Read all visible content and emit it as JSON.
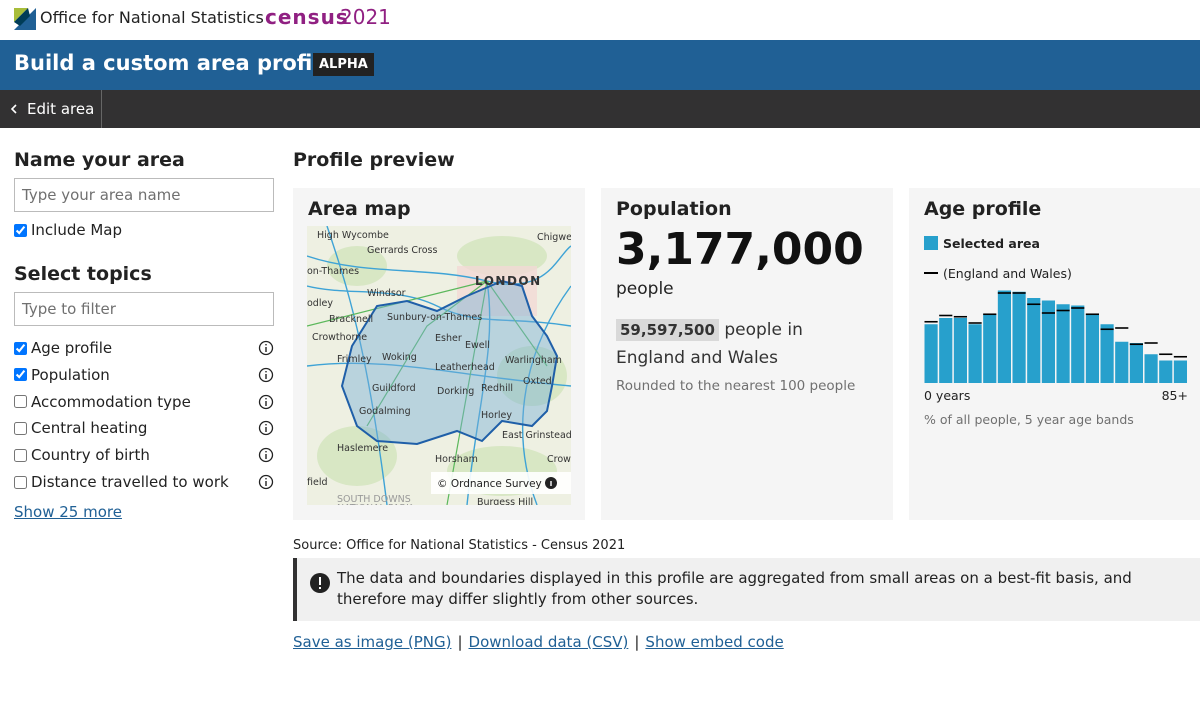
{
  "header": {
    "ons": "Office for National Statistics",
    "census": "census",
    "census_year": "2021"
  },
  "title_bar": {
    "title": "Build a custom area profile",
    "badge": "ALPHA"
  },
  "nav": {
    "back": "Edit area"
  },
  "sidebar": {
    "name_heading": "Name your area",
    "name_placeholder": "Type your area name",
    "include_map": {
      "label": "Include Map",
      "checked": true
    },
    "topics_heading": "Select topics",
    "filter_placeholder": "Type to filter",
    "topics": [
      {
        "label": "Age profile",
        "checked": true
      },
      {
        "label": "Population",
        "checked": true
      },
      {
        "label": "Accommodation type",
        "checked": false
      },
      {
        "label": "Central heating",
        "checked": false
      },
      {
        "label": "Country of birth",
        "checked": false
      },
      {
        "label": "Distance travelled to work",
        "checked": false
      }
    ],
    "show_more": "Show 25 more"
  },
  "preview": {
    "heading": "Profile preview",
    "map_card": {
      "title": "Area map",
      "attribution": "© Ordnance Survey",
      "places": [
        "High Wycombe",
        "Gerrards Cross",
        "Chigwe",
        "on-Thames",
        "LONDON",
        "Windsor",
        "odley",
        "Bracknell",
        "Sunbury-on-Thames",
        "Crowthorne",
        "Esher",
        "Ewell",
        "Frimley",
        "Woking",
        "Warlingham",
        "Leatherhead",
        "Oxted",
        "Guildford",
        "Dorking",
        "Redhill",
        "Godalming",
        "Horley",
        "East Grinstead",
        "Haslemere",
        "Horsham",
        "Crow",
        "field",
        "SOUTH DOWNS",
        "NATIONAL PARK",
        "Burgess Hill"
      ]
    },
    "population_card": {
      "title": "Population",
      "value": "3,177,000",
      "unit": "people",
      "comparison": "59,597,500",
      "comparison_text": "people in England and Wales",
      "note": "Rounded to the nearest 100 people"
    }
  },
  "chart_data": {
    "type": "bar",
    "title": "Age profile",
    "caption": "% of all people, 5 year age bands",
    "categories": [
      "0 years",
      null,
      null,
      null,
      null,
      null,
      null,
      null,
      null,
      null,
      null,
      null,
      null,
      null,
      null,
      null,
      null,
      "85+"
    ],
    "ylim": [
      0,
      8
    ],
    "series": [
      {
        "name": "Selected area",
        "color": "#27a0cc",
        "style": "bar",
        "values": [
          4.7,
          5.2,
          5.2,
          4.7,
          5.5,
          7.4,
          7.3,
          6.8,
          6.6,
          6.3,
          6.2,
          5.5,
          4.7,
          3.3,
          3.2,
          2.3,
          1.8,
          1.8
        ]
      },
      {
        "name": "(England and Wales)",
        "color": "#000000",
        "style": "marker",
        "values": [
          4.9,
          5.4,
          5.3,
          4.8,
          5.5,
          7.2,
          7.2,
          6.3,
          5.6,
          5.8,
          6.0,
          5.5,
          4.3,
          4.4,
          3.1,
          3.2,
          2.3,
          2.1
        ]
      }
    ]
  },
  "footer": {
    "source": "Source: Office for National Statistics - Census 2021",
    "notice": "The data and boundaries displayed in this profile are aggregated from small areas on a best-fit basis, and therefore may differ slightly from other sources.",
    "links": [
      "Save as image (PNG)",
      "Download data (CSV)",
      "Show embed code"
    ],
    "separator": "|"
  }
}
